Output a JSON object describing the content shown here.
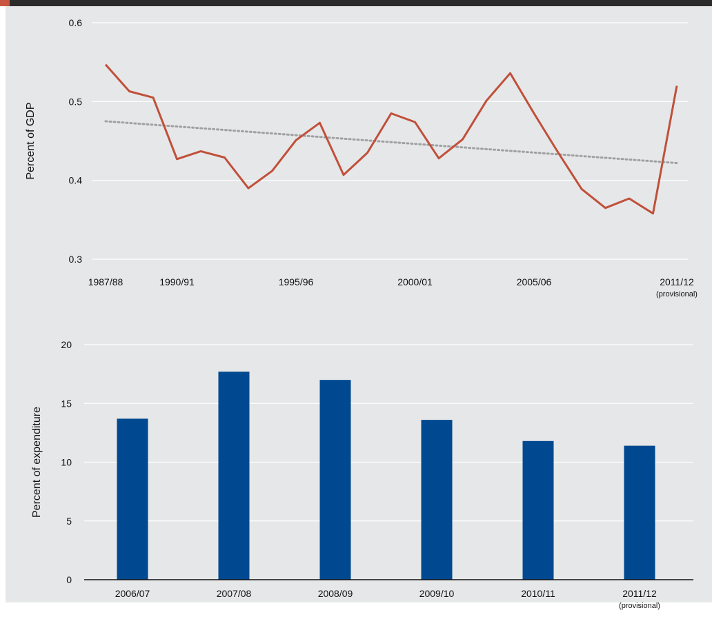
{
  "colors": {
    "line": "#c0503a",
    "trend": "#a0a0a0",
    "bar": "#004990",
    "grid": "#ffffff",
    "panel": "#e6e7e8",
    "topbar": "#2b2b2b",
    "accent": "#c8553d"
  },
  "chart_data": [
    {
      "type": "line",
      "ylabel": "Percent of GDP",
      "ylim": [
        0.3,
        0.6
      ],
      "yticks": [
        "0.6",
        "0.5",
        "0.4",
        "0.3"
      ],
      "x_tick_labels": [
        {
          "label": "1987/88",
          "note": ""
        },
        {
          "label": "1990/91",
          "note": ""
        },
        {
          "label": "1995/96",
          "note": ""
        },
        {
          "label": "2000/01",
          "note": ""
        },
        {
          "label": "2005/06",
          "note": ""
        },
        {
          "label": "2011/12",
          "note": "(provisional)"
        }
      ],
      "x": [
        "1987/88",
        "1988/89",
        "1989/90",
        "1990/91",
        "1991/92",
        "1992/93",
        "1993/94",
        "1994/95",
        "1995/96",
        "1996/97",
        "1997/98",
        "1998/99",
        "1999/00",
        "2000/01",
        "2001/02",
        "2002/03",
        "2003/04",
        "2004/05",
        "2005/06",
        "2006/07",
        "2007/08",
        "2008/09",
        "2009/10",
        "2010/11",
        "2011/12"
      ],
      "series": [
        {
          "values": [
            0.547,
            0.513,
            0.505,
            0.427,
            0.437,
            0.429,
            0.39,
            0.412,
            0.451,
            0.473,
            0.407,
            0.435,
            0.485,
            0.474,
            0.428,
            0.452,
            0.501,
            0.536,
            0.485,
            0.436,
            0.389,
            0.365,
            0.377,
            0.358,
            0.52
          ]
        }
      ],
      "trendline": {
        "start": 0.475,
        "end": 0.422
      },
      "grid": true
    },
    {
      "type": "bar",
      "ylabel": "Percent of expenditure",
      "ylim": [
        0,
        20
      ],
      "yticks": [
        "20",
        "15",
        "10",
        "5",
        "0"
      ],
      "categories": [
        {
          "label": "2006/07",
          "note": ""
        },
        {
          "label": "2007/08",
          "note": ""
        },
        {
          "label": "2008/09",
          "note": ""
        },
        {
          "label": "2009/10",
          "note": ""
        },
        {
          "label": "2010/11",
          "note": ""
        },
        {
          "label": "2011/12",
          "note": "(provisional)"
        }
      ],
      "values": [
        13.7,
        17.7,
        17.0,
        13.6,
        11.8,
        11.4
      ],
      "grid": true
    }
  ]
}
